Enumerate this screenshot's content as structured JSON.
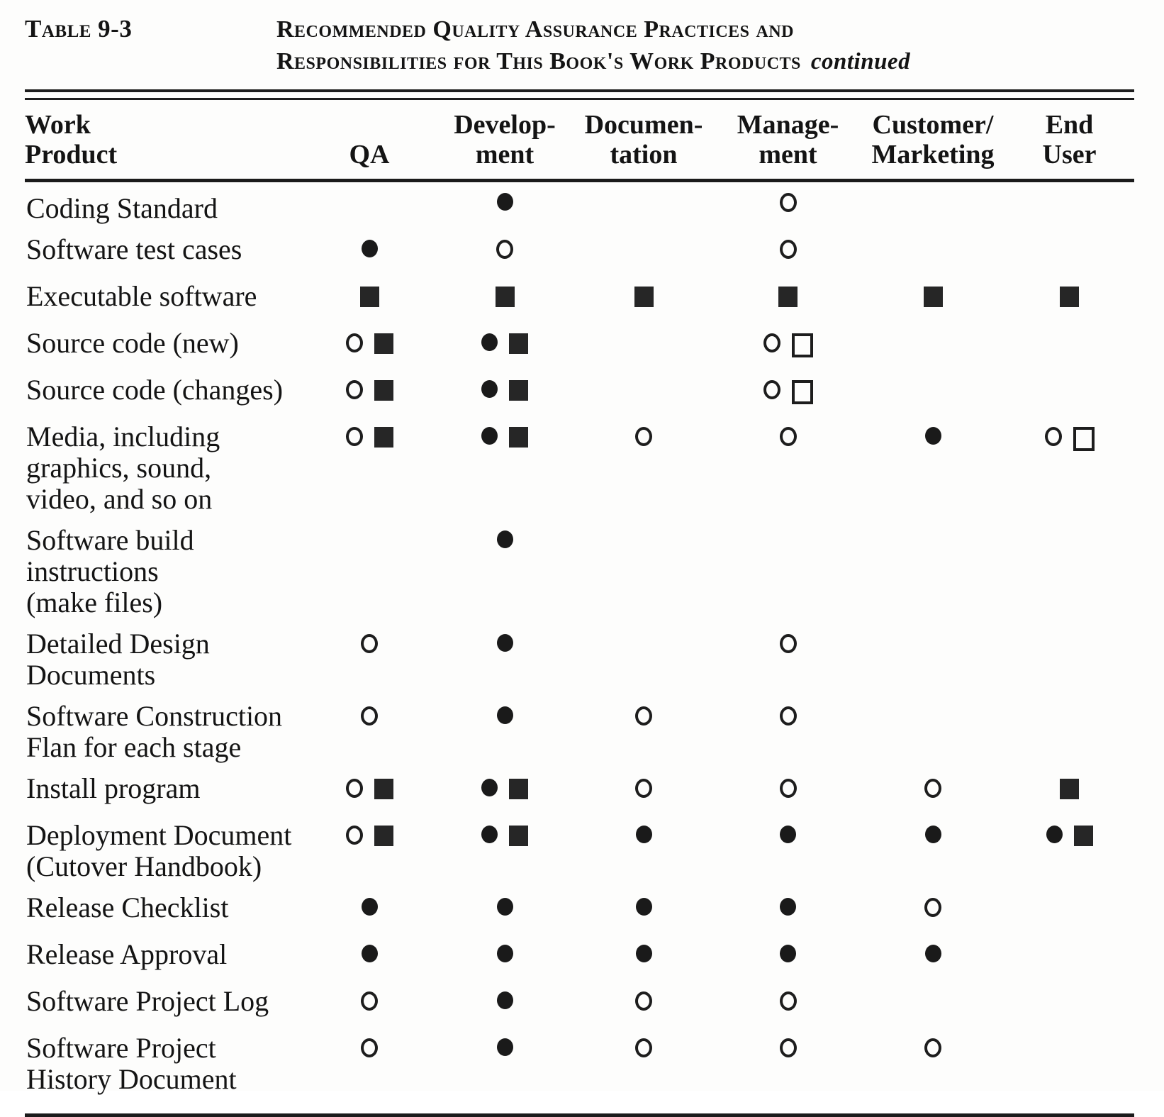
{
  "caption": {
    "label": "Table 9-3",
    "title_line1": "Recommended Quality Assurance Practices and",
    "title_line2": "Responsibilities for This Book's Work Products",
    "continued": "continued"
  },
  "columns": [
    {
      "id": "work-product",
      "label": "Work\nProduct"
    },
    {
      "id": "qa",
      "label": "QA"
    },
    {
      "id": "development",
      "label": "Develop-\nment"
    },
    {
      "id": "documentation",
      "label": "Documen-\ntation"
    },
    {
      "id": "management",
      "label": "Manage-\nment"
    },
    {
      "id": "customer-marketing",
      "label": "Customer/\nMarketing"
    },
    {
      "id": "end-user",
      "label": "End\nUser"
    }
  ],
  "symbols": {
    "filled-circle": "●",
    "open-circle": "○",
    "filled-square": "■",
    "open-square": "□"
  },
  "ink_color": "#141414",
  "background_color": "#fdfdfc",
  "rows": [
    {
      "product": "Coding Standard",
      "cells": [
        [],
        [
          "filled-circle"
        ],
        [],
        [
          "open-circle"
        ],
        [],
        []
      ]
    },
    {
      "product": "Software test cases",
      "cells": [
        [
          "filled-circle"
        ],
        [
          "open-circle"
        ],
        [],
        [
          "open-circle"
        ],
        [],
        []
      ]
    },
    {
      "product": "Executable software",
      "cells": [
        [
          "filled-square"
        ],
        [
          "filled-square"
        ],
        [
          "filled-square"
        ],
        [
          "filled-square"
        ],
        [
          "filled-square"
        ],
        [
          "filled-square"
        ]
      ]
    },
    {
      "product": "Source code (new)",
      "cells": [
        [
          "open-circle",
          "filled-square"
        ],
        [
          "filled-circle",
          "filled-square"
        ],
        [],
        [
          "open-circle",
          "open-square"
        ],
        [],
        []
      ]
    },
    {
      "product": "Source code (changes)",
      "cells": [
        [
          "open-circle",
          "filled-square"
        ],
        [
          "filled-circle",
          "filled-square"
        ],
        [],
        [
          "open-circle",
          "open-square"
        ],
        [],
        []
      ]
    },
    {
      "product": "Media, including\ngraphics, sound,\nvideo, and so on",
      "cells": [
        [
          "open-circle",
          "filled-square"
        ],
        [
          "filled-circle",
          "filled-square"
        ],
        [
          "open-circle"
        ],
        [
          "open-circle"
        ],
        [
          "filled-circle"
        ],
        [
          "open-circle",
          "open-square"
        ]
      ]
    },
    {
      "product": "Software build\ninstructions\n(make files)",
      "cells": [
        [],
        [
          "filled-circle"
        ],
        [],
        [],
        [],
        []
      ]
    },
    {
      "product": "Detailed Design\nDocuments",
      "cells": [
        [
          "open-circle"
        ],
        [
          "filled-circle"
        ],
        [],
        [
          "open-circle"
        ],
        [],
        []
      ]
    },
    {
      "product": "Software Construction\nFlan for each stage",
      "cells": [
        [
          "open-circle"
        ],
        [
          "filled-circle"
        ],
        [
          "open-circle"
        ],
        [
          "open-circle"
        ],
        [],
        []
      ]
    },
    {
      "product": "Install program",
      "cells": [
        [
          "open-circle",
          "filled-square"
        ],
        [
          "filled-circle",
          "filled-square"
        ],
        [
          "open-circle"
        ],
        [
          "open-circle"
        ],
        [
          "open-circle"
        ],
        [
          "filled-square"
        ]
      ]
    },
    {
      "product": "Deployment Document\n(Cutover Handbook)",
      "cells": [
        [
          "open-circle",
          "filled-square"
        ],
        [
          "filled-circle",
          "filled-square"
        ],
        [
          "filled-circle"
        ],
        [
          "filled-circle"
        ],
        [
          "filled-circle"
        ],
        [
          "filled-circle",
          "filled-square"
        ]
      ]
    },
    {
      "product": "Release Checklist",
      "cells": [
        [
          "filled-circle"
        ],
        [
          "filled-circle"
        ],
        [
          "filled-circle"
        ],
        [
          "filled-circle"
        ],
        [
          "open-circle"
        ],
        []
      ]
    },
    {
      "product": "Release Approval",
      "cells": [
        [
          "filled-circle"
        ],
        [
          "filled-circle"
        ],
        [
          "filled-circle"
        ],
        [
          "filled-circle"
        ],
        [
          "filled-circle"
        ],
        []
      ]
    },
    {
      "product": "Software Project Log",
      "cells": [
        [
          "open-circle"
        ],
        [
          "filled-circle"
        ],
        [
          "open-circle"
        ],
        [
          "open-circle"
        ],
        [],
        []
      ]
    },
    {
      "product": "Software Project\nHistory Document",
      "cells": [
        [
          "open-circle"
        ],
        [
          "filled-circle"
        ],
        [
          "open-circle"
        ],
        [
          "open-circle"
        ],
        [
          "open-circle"
        ],
        []
      ]
    }
  ]
}
